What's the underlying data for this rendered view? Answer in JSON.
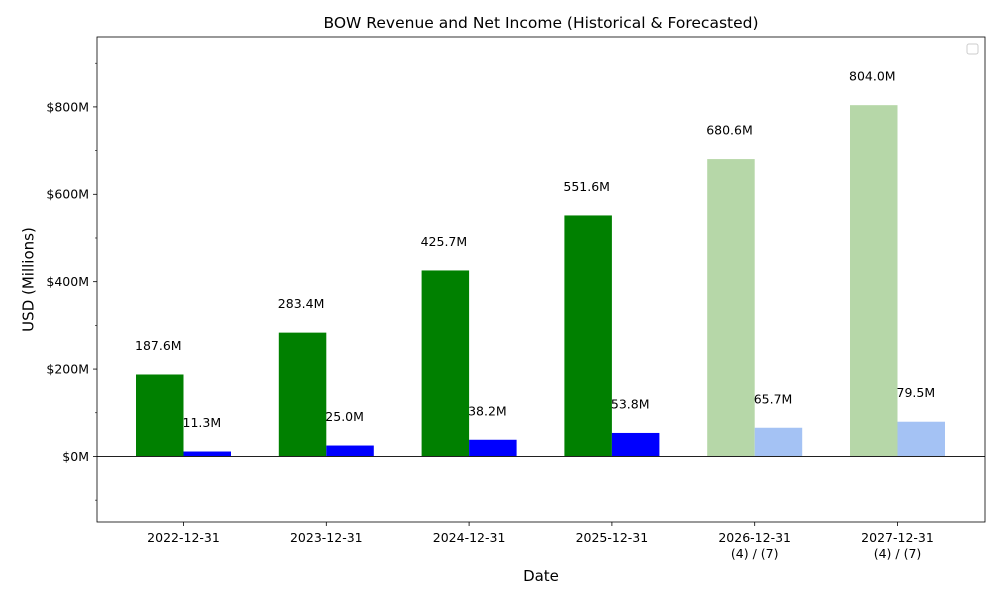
{
  "chart_data": {
    "type": "bar",
    "title": "BOW Revenue and Net Income (Historical & Forecasted)",
    "xlabel": "Date",
    "ylabel": "USD (Millions)",
    "ylim": [
      -150,
      960
    ],
    "yticks": [
      0,
      200,
      400,
      600,
      800
    ],
    "ytick_labels": [
      "$0M",
      "$200M",
      "$400M",
      "$600M",
      "$800M"
    ],
    "categories": [
      "2022-12-31",
      "2023-12-31",
      "2024-12-31",
      "2025-12-31",
      "2026-12-31\n(4) / (7)",
      "2027-12-31\n(4) / (7)"
    ],
    "forecast_from_index": 4,
    "series": [
      {
        "values": [
          187.6,
          283.4,
          425.7,
          551.6,
          680.6,
          804.0
        ],
        "labels": [
          "187.6M",
          "283.4M",
          "425.7M",
          "551.6M",
          "680.6M",
          "804.0M"
        ],
        "color": "#008000",
        "forecast_color": "#b6d7a8"
      },
      {
        "values": [
          11.3,
          25.0,
          38.2,
          53.8,
          65.7,
          79.5
        ],
        "labels": [
          "11.3M",
          "25.0M",
          "38.2M",
          "53.8M",
          "65.7M",
          "79.5M"
        ],
        "color": "#0000ff",
        "forecast_color": "#a4c2f4"
      }
    ],
    "legend": "top-right",
    "grid": false
  }
}
